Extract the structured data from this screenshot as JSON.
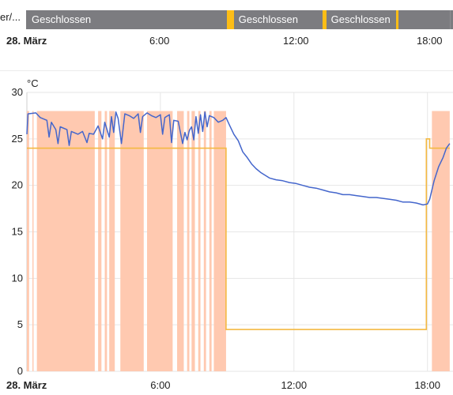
{
  "timeline": {
    "row_label": "er/...",
    "segments": [
      {
        "label": "Geschlossen",
        "start": 0.0,
        "end": 9.0
      },
      {
        "label": "",
        "start": 9.0,
        "end": 9.3,
        "state": "open"
      },
      {
        "label": "Geschlossen",
        "start": 9.3,
        "end": 13.3
      },
      {
        "label": "",
        "start": 13.3,
        "end": 13.45,
        "state": "open"
      },
      {
        "label": "Geschlossen",
        "start": 13.45,
        "end": 16.6
      },
      {
        "label": "",
        "start": 16.6,
        "end": 16.7,
        "state": "open"
      },
      {
        "label": "",
        "start": 16.7,
        "end": 19.0
      }
    ],
    "axis_labels": [
      "28. März",
      "6:00",
      "12:00",
      "18:00"
    ]
  },
  "colors": {
    "bar_gray": "#7c7c80",
    "open_yellow": "#fdbd16",
    "temperature_line": "#4466cc",
    "setpoint_line": "#f4b942",
    "heating_fill": "#ffc9b0",
    "grid": "#e6e6e6"
  },
  "chart_data": {
    "type": "line",
    "ylabel": "°C",
    "ylim": [
      0,
      30
    ],
    "yticks": [
      0,
      5,
      10,
      15,
      20,
      25,
      30
    ],
    "xlim": [
      0,
      19
    ],
    "xticks": [
      {
        "hour": 0,
        "label": "28. März"
      },
      {
        "hour": 6,
        "label": "6:00"
      },
      {
        "hour": 12,
        "label": "12:00"
      },
      {
        "hour": 18,
        "label": "18:00"
      }
    ],
    "series": [
      {
        "role": "current-temperature",
        "points": [
          [
            0.0,
            25.5
          ],
          [
            0.05,
            27.7
          ],
          [
            0.4,
            27.8
          ],
          [
            0.6,
            27.3
          ],
          [
            0.9,
            27.0
          ],
          [
            1.0,
            25.2
          ],
          [
            1.1,
            26.8
          ],
          [
            1.3,
            26.0
          ],
          [
            1.4,
            24.5
          ],
          [
            1.5,
            26.3
          ],
          [
            1.8,
            26.0
          ],
          [
            1.9,
            24.3
          ],
          [
            2.0,
            25.8
          ],
          [
            2.3,
            25.5
          ],
          [
            2.5,
            25.8
          ],
          [
            2.7,
            24.6
          ],
          [
            2.8,
            25.6
          ],
          [
            3.0,
            25.5
          ],
          [
            3.2,
            26.4
          ],
          [
            3.4,
            25.0
          ],
          [
            3.5,
            26.8
          ],
          [
            3.7,
            25.2
          ],
          [
            3.8,
            27.4
          ],
          [
            3.9,
            25.7
          ],
          [
            4.0,
            27.9
          ],
          [
            4.1,
            27.2
          ],
          [
            4.25,
            24.5
          ],
          [
            4.4,
            27.7
          ],
          [
            4.6,
            27.5
          ],
          [
            4.8,
            27.2
          ],
          [
            5.0,
            27.7
          ],
          [
            5.1,
            25.7
          ],
          [
            5.2,
            27.4
          ],
          [
            5.4,
            27.8
          ],
          [
            5.6,
            27.5
          ],
          [
            5.8,
            27.3
          ],
          [
            6.0,
            27.6
          ],
          [
            6.1,
            25.5
          ],
          [
            6.2,
            27.3
          ],
          [
            6.4,
            27.6
          ],
          [
            6.5,
            24.6
          ],
          [
            6.6,
            27.0
          ],
          [
            6.8,
            26.9
          ],
          [
            7.0,
            24.5
          ],
          [
            7.1,
            25.7
          ],
          [
            7.2,
            24.9
          ],
          [
            7.3,
            25.9
          ],
          [
            7.4,
            26.3
          ],
          [
            7.5,
            24.9
          ],
          [
            7.6,
            27.4
          ],
          [
            7.7,
            25.6
          ],
          [
            7.8,
            27.6
          ],
          [
            7.9,
            25.8
          ],
          [
            8.0,
            27.9
          ],
          [
            8.1,
            26.3
          ],
          [
            8.2,
            27.5
          ],
          [
            8.4,
            27.3
          ],
          [
            8.6,
            26.8
          ],
          [
            8.8,
            27.0
          ],
          [
            8.95,
            27.3
          ],
          [
            9.1,
            26.5
          ],
          [
            9.3,
            25.5
          ],
          [
            9.5,
            24.8
          ],
          [
            9.7,
            23.6
          ],
          [
            9.9,
            23.0
          ],
          [
            10.1,
            22.3
          ],
          [
            10.3,
            21.8
          ],
          [
            10.5,
            21.4
          ],
          [
            10.7,
            21.1
          ],
          [
            10.9,
            20.8
          ],
          [
            11.2,
            20.6
          ],
          [
            11.5,
            20.5
          ],
          [
            11.8,
            20.3
          ],
          [
            12.1,
            20.2
          ],
          [
            12.4,
            20.0
          ],
          [
            12.7,
            19.8
          ],
          [
            13.0,
            19.7
          ],
          [
            13.3,
            19.5
          ],
          [
            13.6,
            19.3
          ],
          [
            13.9,
            19.2
          ],
          [
            14.2,
            19.0
          ],
          [
            14.5,
            19.0
          ],
          [
            14.8,
            18.9
          ],
          [
            15.1,
            18.8
          ],
          [
            15.4,
            18.7
          ],
          [
            15.7,
            18.7
          ],
          [
            16.0,
            18.6
          ],
          [
            16.3,
            18.5
          ],
          [
            16.6,
            18.4
          ],
          [
            16.9,
            18.2
          ],
          [
            17.2,
            18.2
          ],
          [
            17.5,
            18.1
          ],
          [
            17.8,
            17.9
          ],
          [
            18.0,
            18.0
          ],
          [
            18.1,
            18.5
          ],
          [
            18.3,
            20.5
          ],
          [
            18.5,
            22.0
          ],
          [
            18.7,
            23.0
          ],
          [
            18.85,
            24.0
          ],
          [
            19.0,
            24.5
          ]
        ]
      },
      {
        "role": "target-temperature",
        "points": [
          [
            0.0,
            24.0
          ],
          [
            8.95,
            24.0
          ],
          [
            8.95,
            4.5
          ],
          [
            17.95,
            4.5
          ],
          [
            17.95,
            25.0
          ],
          [
            18.1,
            25.0
          ],
          [
            18.1,
            24.0
          ],
          [
            19.0,
            24.0
          ]
        ]
      }
    ],
    "heating_periods": [
      [
        0.0,
        0.1
      ],
      [
        0.25,
        0.3
      ],
      [
        0.45,
        3.05
      ],
      [
        3.2,
        3.35
      ],
      [
        3.5,
        3.6
      ],
      [
        3.7,
        3.95
      ],
      [
        4.2,
        5.25
      ],
      [
        5.4,
        6.55
      ],
      [
        6.75,
        7.05
      ],
      [
        7.2,
        7.3
      ],
      [
        7.4,
        7.55
      ],
      [
        7.7,
        7.8
      ],
      [
        7.95,
        8.05
      ],
      [
        8.2,
        8.3
      ],
      [
        8.4,
        8.95
      ],
      [
        18.2,
        19.0
      ]
    ]
  }
}
